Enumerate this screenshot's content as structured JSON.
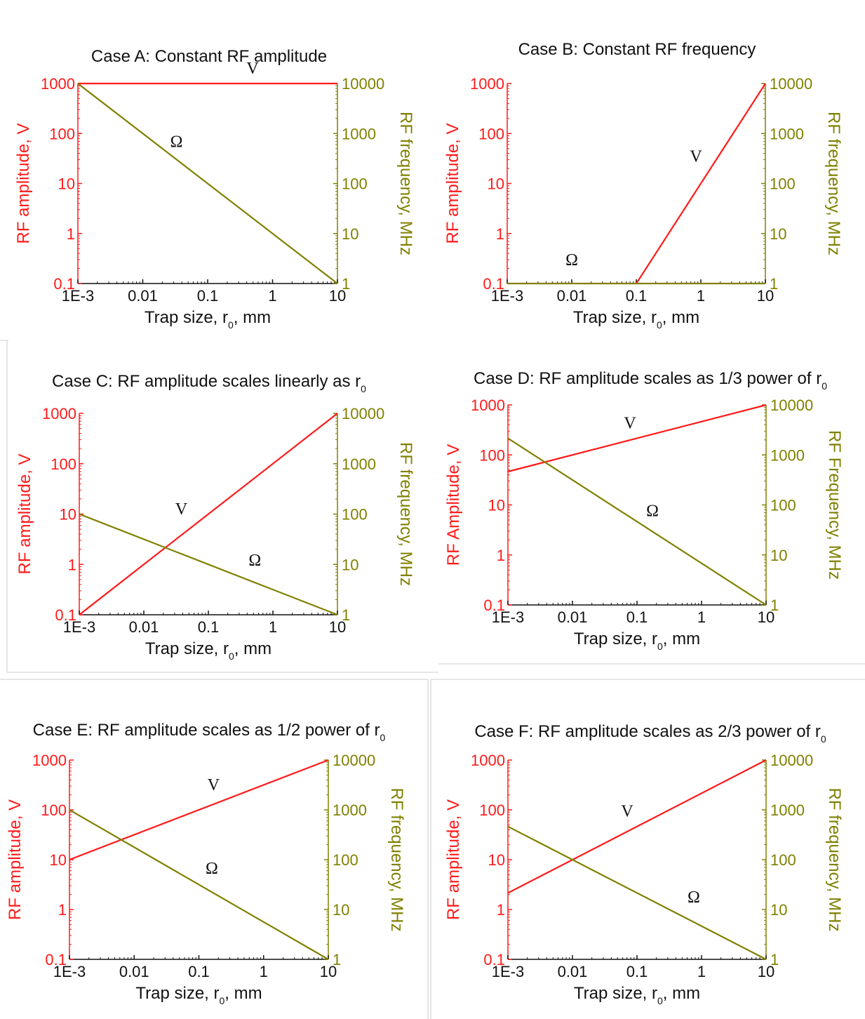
{
  "colors": {
    "amplitude": "#ff1a1a",
    "frequency": "#808000",
    "axis_x": "#111111"
  },
  "chart_data": [
    {
      "type": "line",
      "title": "Case A: Constant RF amplitude",
      "xlabel": "Trap size, r",
      "xlabel_sub": "0",
      "xlabel_suffix": ", mm",
      "ylabel_left": "RF amplitude, V",
      "ylabel_right": "RF frequency, MHz",
      "x_scale": "log",
      "xlim": [
        0.001,
        10
      ],
      "ylim_left": [
        0.1,
        1000
      ],
      "ylim_right": [
        1,
        10000
      ],
      "x_ticks": [
        "1E-3",
        "0.01",
        "0.1",
        "1",
        "10"
      ],
      "y_left_ticks": [
        "0.1",
        "1",
        "10",
        "100",
        "1000"
      ],
      "y_right_ticks": [
        "1",
        "10",
        "100",
        "1000",
        "10000"
      ],
      "series": [
        {
          "name": "V",
          "axis": "left",
          "x": [
            0.001,
            10
          ],
          "y": [
            1000,
            1000
          ]
        },
        {
          "name": "Ω",
          "axis": "right",
          "x": [
            0.001,
            10
          ],
          "y": [
            10000,
            1
          ]
        }
      ]
    },
    {
      "type": "line",
      "title": "Case B: Constant RF frequency",
      "xlabel": "Trap size, r",
      "xlabel_sub": "0",
      "xlabel_suffix": ", mm",
      "ylabel_left": "RF amplitude, V",
      "ylabel_right": "RF frequency, MHz",
      "x_scale": "log",
      "xlim": [
        0.001,
        10
      ],
      "ylim_left": [
        0.1,
        1000
      ],
      "ylim_right": [
        1,
        10000
      ],
      "x_ticks": [
        "1E-3",
        "0.01",
        "0.1",
        "1",
        "10"
      ],
      "y_left_ticks": [
        "0.1",
        "1",
        "10",
        "100",
        "1000"
      ],
      "y_right_ticks": [
        "1",
        "10",
        "100",
        "1000",
        "10000"
      ],
      "series": [
        {
          "name": "V",
          "axis": "left",
          "x": [
            0.1,
            10
          ],
          "y": [
            0.1,
            1000
          ]
        },
        {
          "name": "Ω",
          "axis": "right",
          "x": [
            0.001,
            10
          ],
          "y": [
            1,
            1
          ]
        }
      ]
    },
    {
      "type": "line",
      "title": "Case C: RF amplitude scales linearly as r",
      "title_sub": "0",
      "xlabel": "Trap size, r",
      "xlabel_sub": "0",
      "xlabel_suffix": ", mm",
      "ylabel_left": "RF amplitude, V",
      "ylabel_right": "RF frequency, MHz",
      "x_scale": "log",
      "xlim": [
        0.001,
        10
      ],
      "ylim_left": [
        0.1,
        1000
      ],
      "ylim_right": [
        1,
        10000
      ],
      "x_ticks": [
        "1E-3",
        "0.01",
        "0.1",
        "1",
        "10"
      ],
      "y_left_ticks": [
        "0.1",
        "1",
        "10",
        "100",
        "1000"
      ],
      "y_right_ticks": [
        "1",
        "10",
        "100",
        "1000",
        "10000"
      ],
      "series": [
        {
          "name": "V",
          "axis": "left",
          "x": [
            0.001,
            10
          ],
          "y": [
            0.1,
            1000
          ]
        },
        {
          "name": "Ω",
          "axis": "right",
          "x": [
            0.001,
            10
          ],
          "y": [
            100,
            1
          ]
        }
      ]
    },
    {
      "type": "line",
      "title": "Case D: RF amplitude scales as 1/3 power of r",
      "title_sub": "0",
      "xlabel": "Trap size, r",
      "xlabel_sub": "0",
      "xlabel_suffix": ", mm",
      "ylabel_left": "RF Amplitude, V",
      "ylabel_right": "RF Frequency, MHz",
      "x_scale": "log",
      "xlim": [
        0.001,
        10
      ],
      "ylim_left": [
        0.1,
        1000
      ],
      "ylim_right": [
        1,
        10000
      ],
      "x_ticks": [
        "1E-3",
        "0.01",
        "0.1",
        "1",
        "10"
      ],
      "y_left_ticks": [
        "0.1",
        "1",
        "10",
        "100",
        "1000"
      ],
      "y_right_ticks": [
        "1",
        "10",
        "100",
        "1000",
        "10000"
      ],
      "series": [
        {
          "name": "V",
          "axis": "left",
          "x": [
            0.001,
            10
          ],
          "y": [
            46.4,
            1000
          ]
        },
        {
          "name": "Ω",
          "axis": "right",
          "x": [
            0.001,
            10
          ],
          "y": [
            2154,
            1
          ]
        }
      ]
    },
    {
      "type": "line",
      "title": "Case E: RF amplitude scales as 1/2 power of r",
      "title_sub": "0",
      "xlabel": "Trap size, r",
      "xlabel_sub": "0",
      "xlabel_suffix": ", mm",
      "ylabel_left": "RF amplitude, V",
      "ylabel_right": "RF frequency, MHz",
      "x_scale": "log",
      "xlim": [
        0.001,
        10
      ],
      "ylim_left": [
        0.1,
        1000
      ],
      "ylim_right": [
        1,
        10000
      ],
      "x_ticks": [
        "1E-3",
        "0.01",
        "0.1",
        "1",
        "10"
      ],
      "y_left_ticks": [
        "0.1",
        "1",
        "10",
        "100",
        "1000"
      ],
      "y_right_ticks": [
        "1",
        "10",
        "100",
        "1000",
        "10000"
      ],
      "series": [
        {
          "name": "V",
          "axis": "left",
          "x": [
            0.001,
            10
          ],
          "y": [
            10,
            1000
          ]
        },
        {
          "name": "Ω",
          "axis": "right",
          "x": [
            0.001,
            10
          ],
          "y": [
            1000,
            1
          ]
        }
      ]
    },
    {
      "type": "line",
      "title": "Case F: RF amplitude scales as 2/3 power of r",
      "title_sub": "0",
      "xlabel": "Trap size, r",
      "xlabel_sub": "0",
      "xlabel_suffix": ", mm",
      "ylabel_left": "RF amplitude, V",
      "ylabel_right": "RF frequency, MHz",
      "x_scale": "log",
      "xlim": [
        0.001,
        10
      ],
      "ylim_left": [
        0.1,
        1000
      ],
      "ylim_right": [
        1,
        10000
      ],
      "x_ticks": [
        "1E-3",
        "0.01",
        "0.1",
        "1",
        "10"
      ],
      "y_left_ticks": [
        "0.1",
        "1",
        "10",
        "100",
        "1000"
      ],
      "y_right_ticks": [
        "1",
        "10",
        "100",
        "1000",
        "10000"
      ],
      "series": [
        {
          "name": "V",
          "axis": "left",
          "x": [
            0.001,
            10
          ],
          "y": [
            2.15,
            1000
          ]
        },
        {
          "name": "Ω",
          "axis": "right",
          "x": [
            0.001,
            10
          ],
          "y": [
            464,
            1
          ]
        }
      ]
    }
  ]
}
